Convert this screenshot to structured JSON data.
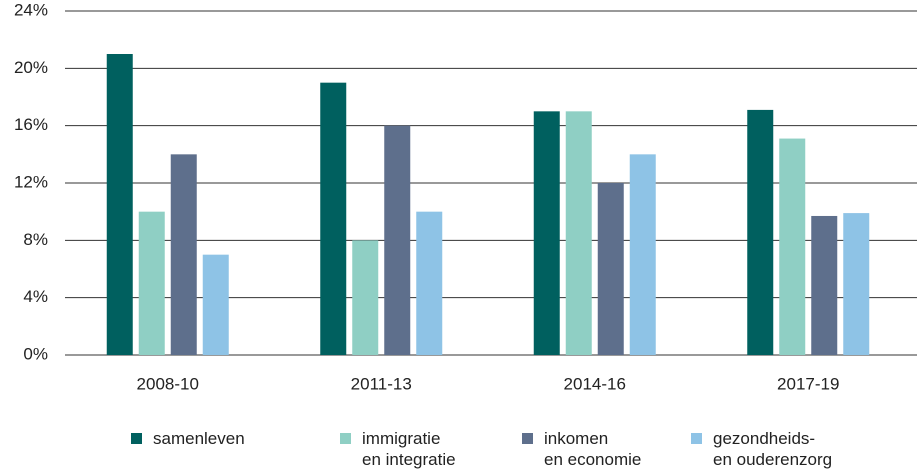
{
  "chart_data": {
    "type": "bar",
    "categories": [
      "2008-10",
      "2011-13",
      "2014-16",
      "2017-19"
    ],
    "series": [
      {
        "name": "samenleven",
        "color": "#00605f",
        "values": [
          21,
          19,
          17,
          17.1
        ]
      },
      {
        "name": "immigratie\nen integratie",
        "color": "#8fcfc4",
        "values": [
          10,
          8,
          17,
          15.1
        ]
      },
      {
        "name": "inkomen\nen economie",
        "color": "#5e6f8c",
        "values": [
          14,
          16,
          12,
          9.7
        ]
      },
      {
        "name": "gezondheids-\nen ouderenzorg",
        "color": "#8ec3e6",
        "values": [
          7,
          10,
          14,
          9.9
        ]
      }
    ],
    "ylim": [
      0,
      24
    ],
    "yticks": [
      {
        "value": 0,
        "label": "0%"
      },
      {
        "value": 4,
        "label": "4%"
      },
      {
        "value": 8,
        "label": "8%"
      },
      {
        "value": 12,
        "label": "12%"
      },
      {
        "value": 16,
        "label": "16%"
      },
      {
        "value": 20,
        "label": "20%"
      },
      {
        "value": 24,
        "label": "24%"
      }
    ],
    "grid": true
  }
}
